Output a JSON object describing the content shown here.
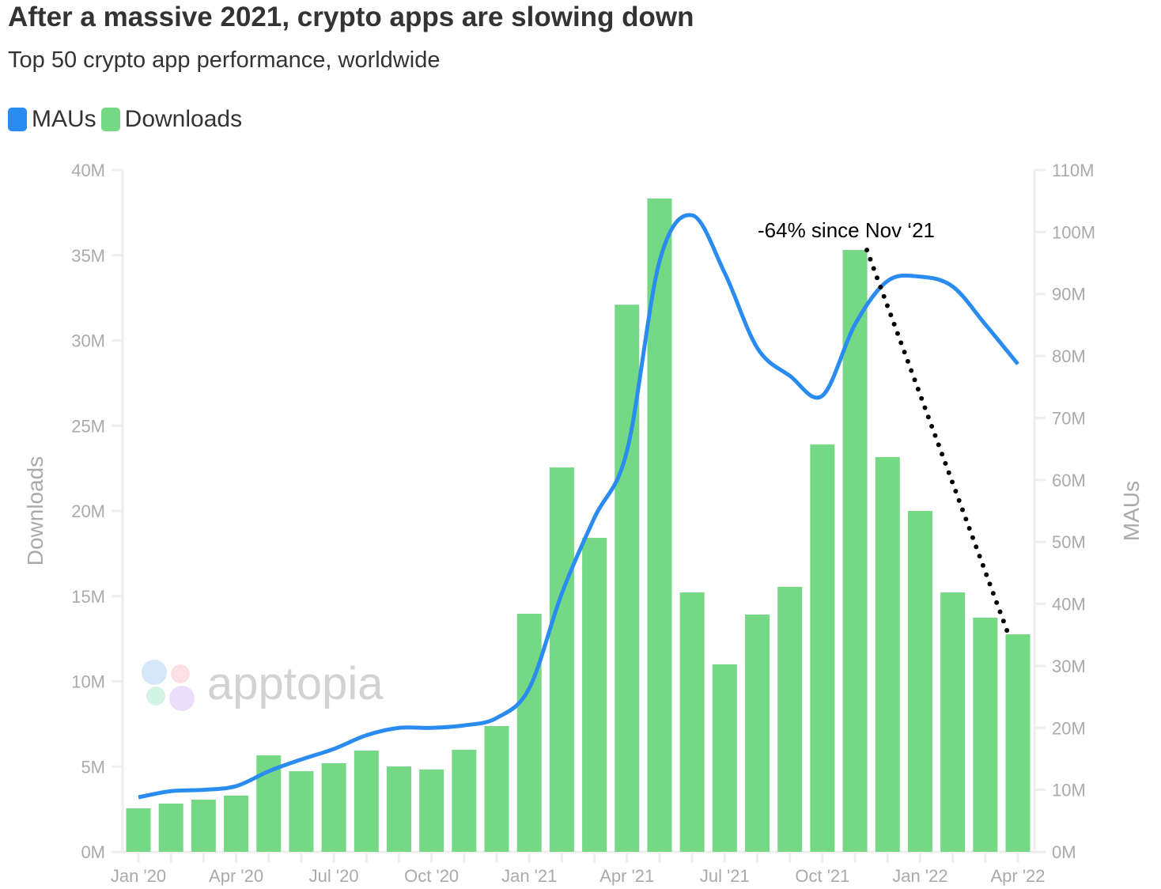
{
  "title": "After a massive 2021, crypto apps are slowing down",
  "subtitle": "Top 50 crypto app performance, worldwide",
  "watermark": "apptopia",
  "chart_data": {
    "type": "bar+line",
    "title": "After a massive 2021, crypto apps are slowing down",
    "subtitle": "Top 50 crypto app performance, worldwide",
    "legend_position": "top-left",
    "categories": [
      "Jan '20",
      "Feb '20",
      "Mar '20",
      "Apr '20",
      "May '20",
      "Jun '20",
      "Jul '20",
      "Aug '20",
      "Sep '20",
      "Oct '20",
      "Nov '20",
      "Dec '20",
      "Jan '21",
      "Feb '21",
      "Mar '21",
      "Apr '21",
      "May '21",
      "Jun '21",
      "Jul '21",
      "Aug '21",
      "Sep '21",
      "Oct '21",
      "Nov '21",
      "Dec '21",
      "Jan '22",
      "Feb '22",
      "Mar '22",
      "Apr '22"
    ],
    "x_tick_labels": [
      "Jan '20",
      "Apr '20",
      "Jul '20",
      "Oct '20",
      "Jan '21",
      "Apr '21",
      "Jul '21",
      "Oct '21",
      "Jan '22",
      "Apr '22"
    ],
    "series": [
      {
        "name": "Downloads",
        "type": "bar",
        "axis": "left",
        "color": "#75d884",
        "values": [
          2.55,
          2.83,
          3.06,
          3.3,
          5.66,
          4.73,
          5.2,
          5.94,
          5.01,
          4.83,
          5.99,
          7.38,
          13.97,
          22.55,
          18.42,
          32.1,
          38.33,
          15.22,
          11.0,
          13.92,
          15.55,
          23.9,
          35.31,
          23.16,
          20.0,
          15.22,
          13.74,
          12.76
        ]
      },
      {
        "name": "MAUs",
        "type": "line",
        "axis": "right",
        "color": "#2a8cf0",
        "values": [
          8.8,
          9.8,
          10.0,
          10.6,
          13.0,
          14.9,
          16.6,
          18.8,
          20.0,
          20.0,
          20.4,
          21.6,
          26.4,
          41.7,
          53.9,
          64.7,
          95.3,
          102.7,
          93.4,
          81.3,
          76.8,
          73.6,
          85.1,
          92.1,
          92.8,
          91.2,
          85.1,
          78.7
        ]
      }
    ],
    "y_left": {
      "label": "Downloads",
      "unit": "M",
      "range": [
        0,
        40
      ],
      "ticks": [
        "0M",
        "5M",
        "10M",
        "15M",
        "20M",
        "25M",
        "30M",
        "35M",
        "40M"
      ]
    },
    "y_right": {
      "label": "MAUs",
      "unit": "M",
      "range": [
        0,
        110
      ],
      "ticks": [
        "0M",
        "10M",
        "20M",
        "30M",
        "40M",
        "50M",
        "60M",
        "70M",
        "80M",
        "90M",
        "100M",
        "110M"
      ]
    },
    "annotation": {
      "text": "-64% since Nov ‘21",
      "from": "Nov '21",
      "to": "Apr '22"
    },
    "grid": false
  }
}
